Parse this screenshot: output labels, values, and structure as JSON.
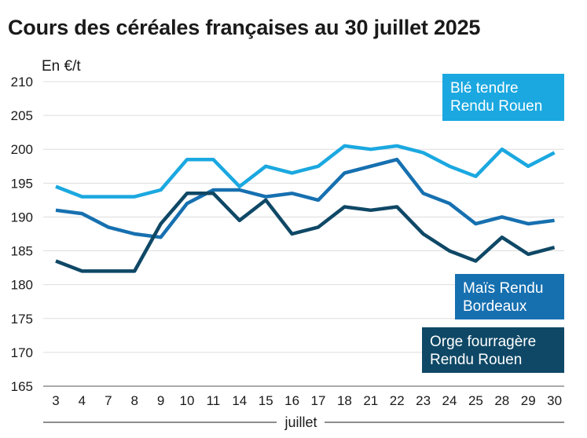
{
  "title": "Cours des céréales françaises au 30 juillet 2025",
  "chart_data": {
    "type": "line",
    "title": "Cours des céréales françaises au 30 juillet 2025",
    "ylabel": "En €/t",
    "xlabel": "juillet",
    "ylim": [
      165,
      210
    ],
    "yticks": [
      165,
      170,
      175,
      180,
      185,
      190,
      195,
      200,
      205,
      210
    ],
    "categories": [
      "3",
      "4",
      "7",
      "8",
      "9",
      "10",
      "11",
      "14",
      "15",
      "16",
      "17",
      "18",
      "21",
      "22",
      "23",
      "24",
      "25",
      "28",
      "29",
      "30"
    ],
    "grid": true,
    "series": [
      {
        "name": "Blé tendre Rendu Rouen",
        "label_lines": [
          "Blé tendre",
          "Rendu Rouen"
        ],
        "color": "#1ba8e0",
        "values": [
          194.5,
          193,
          193,
          193,
          194,
          198.5,
          198.5,
          194.5,
          197.5,
          196.5,
          197.5,
          200.5,
          200,
          200.5,
          199.5,
          197.5,
          196,
          200,
          197.5,
          199.5
        ]
      },
      {
        "name": "Maïs Rendu Bordeaux",
        "label_lines": [
          "Maïs Rendu",
          "Bordeaux"
        ],
        "color": "#1670b0",
        "values": [
          191,
          190.5,
          188.5,
          187.5,
          187,
          192,
          194,
          194,
          193,
          193.5,
          192.5,
          196.5,
          197.5,
          198.5,
          193.5,
          192,
          189,
          190,
          189,
          189.5
        ]
      },
      {
        "name": "Orge fourragère Rendu Rouen",
        "label_lines": [
          "Orge fourragère",
          "Rendu Rouen"
        ],
        "color": "#0f4866",
        "values": [
          183.5,
          182,
          182,
          182,
          189,
          193.5,
          193.5,
          189.5,
          192.5,
          187.5,
          188.5,
          191.5,
          191,
          191.5,
          187.5,
          185,
          183.5,
          187,
          184.5,
          185.5
        ]
      }
    ]
  }
}
